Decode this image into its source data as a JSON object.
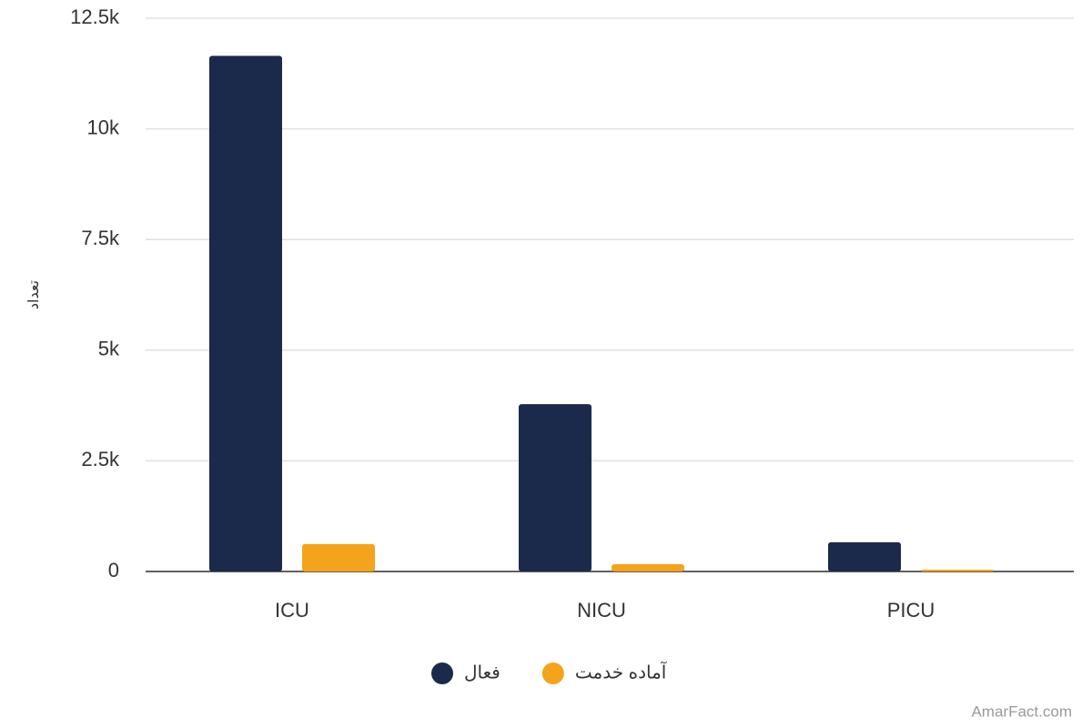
{
  "chart_data": {
    "type": "bar",
    "y_label": "تعداد",
    "categories": [
      "ICU",
      "NICU",
      "PICU"
    ],
    "series": [
      {
        "name": "فعال",
        "color": "#1b2a4a",
        "values": [
          11650,
          3780,
          660
        ]
      },
      {
        "name": "آماده خدمت",
        "color": "#f5a31a",
        "values": [
          620,
          165,
          40
        ]
      }
    ],
    "ylim": [
      0,
      12500
    ],
    "yticks": [
      0,
      {
        "value": 2500,
        "label": "2.5k"
      },
      {
        "value": 5000,
        "label": "5k"
      },
      {
        "value": 7500,
        "label": "7.5k"
      },
      {
        "value": 10000,
        "label": "10k"
      },
      {
        "value": 12500,
        "label": "12.5k"
      }
    ],
    "grid": true,
    "legend": "bottom",
    "credit": "AmarFact.com"
  }
}
